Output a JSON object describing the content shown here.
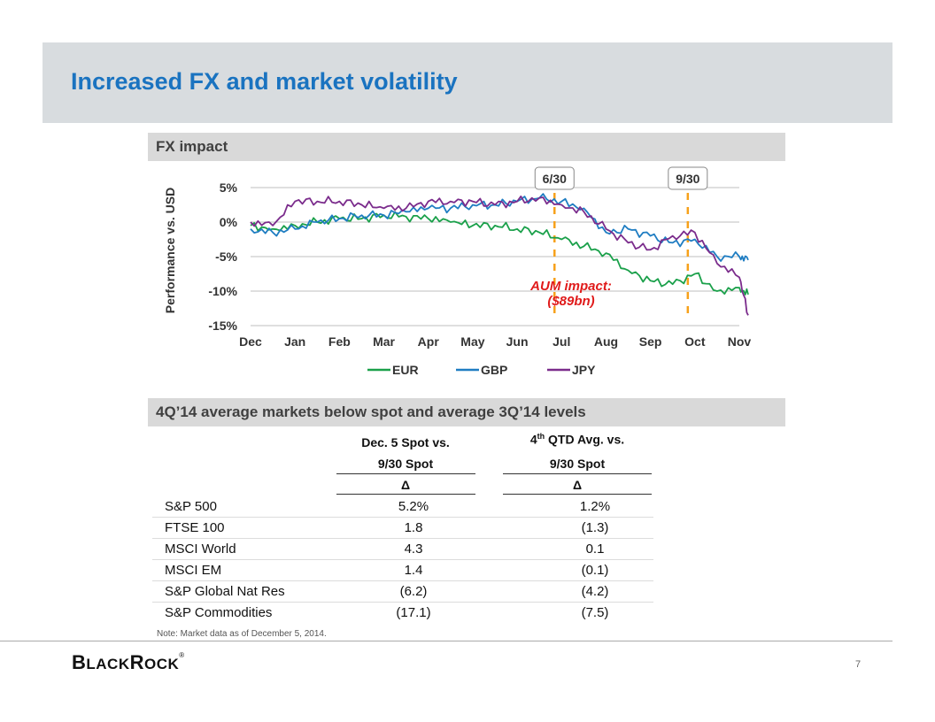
{
  "header": {
    "title": "Increased FX and market volatility"
  },
  "fx_section": {
    "title": "FX impact"
  },
  "chart_data": {
    "type": "line",
    "title": "FX impact",
    "ylabel": "Performance vs. USD",
    "xlabel": "",
    "ylim": [
      -15,
      5
    ],
    "y_ticks": [
      5,
      0,
      -5,
      -10,
      -15
    ],
    "y_tick_labels": [
      "5%",
      "0%",
      "-5%",
      "-10%",
      "-15%"
    ],
    "x_ticks": [
      "Dec",
      "Jan",
      "Feb",
      "Mar",
      "Apr",
      "May",
      "Jun",
      "Jul",
      "Aug",
      "Sep",
      "Oct",
      "Nov"
    ],
    "x": [
      0,
      0.5,
      1,
      1.5,
      2,
      2.5,
      3,
      3.5,
      4,
      4.5,
      5,
      5.5,
      6,
      6.5,
      7,
      7.5,
      8,
      8.5,
      9,
      9.5,
      10,
      10.5,
      11,
      11.2
    ],
    "series": [
      {
        "name": "EUR",
        "color": "#1aa04a",
        "values": [
          -0.5,
          -1,
          -0.5,
          0,
          0.5,
          0.5,
          1,
          0.8,
          0.5,
          0,
          -0.5,
          -0.5,
          -1,
          -1.5,
          -2.5,
          -3.5,
          -4.5,
          -7,
          -8.5,
          -9,
          -7.5,
          -10,
          -9.5,
          -10.5
        ]
      },
      {
        "name": "GBP",
        "color": "#1f7dc2",
        "values": [
          -1,
          -1.5,
          -1,
          0,
          0.5,
          1,
          1,
          1.5,
          2,
          2,
          2.5,
          2.5,
          3,
          3.5,
          3,
          2,
          -1.5,
          -1,
          -2,
          -3,
          -2.5,
          -5,
          -5,
          -5.5
        ]
      },
      {
        "name": "JPY",
        "color": "#7b2c8c",
        "values": [
          0,
          -0.5,
          3,
          3,
          3,
          2.5,
          2,
          2,
          3,
          3,
          3,
          2.5,
          3,
          3.5,
          2.5,
          1.5,
          -1,
          -3,
          -4,
          -2,
          -1.5,
          -6,
          -8,
          -13.5
        ]
      }
    ],
    "annotations": [
      {
        "label": "6/30",
        "x": 7
      },
      {
        "label": "9/30",
        "x": 10
      }
    ],
    "impact_text": [
      "AUM impact:",
      "($89bn)"
    ]
  },
  "table_section": {
    "title": "4Q’14 average markets below spot and average 3Q’14 levels",
    "col1": {
      "line1": "Dec. 5 Spot vs.",
      "line2": "9/30 Spot",
      "delta": "Δ"
    },
    "col2": {
      "line1_pre": "4",
      "line1_sup": "th",
      "line1_post": " QTD Avg. vs.",
      "line2": "9/30 Spot",
      "delta": "Δ"
    },
    "rows": [
      {
        "name": "S&P 500",
        "v1": "5.2%",
        "v2": "1.2%"
      },
      {
        "name": "FTSE 100",
        "v1": "1.8",
        "v2": "(1.3)"
      },
      {
        "name": "MSCI World",
        "v1": "4.3",
        "v2": "0.1"
      },
      {
        "name": "MSCI EM",
        "v1": "1.4",
        "v2": "(0.1)"
      },
      {
        "name": "S&P Global Nat Res",
        "v1": "(6.2)",
        "v2": "(4.2)"
      },
      {
        "name": "S&P Commodities",
        "v1": "(17.1)",
        "v2": "(7.5)"
      }
    ]
  },
  "note": "Note: Market data as of December 5, 2014.",
  "footer": {
    "logo_b": "B",
    "logo_rest1": "LACK",
    "logo_r": "R",
    "logo_rest2": "OCK",
    "logo_reg": "®",
    "page_number": "7"
  }
}
